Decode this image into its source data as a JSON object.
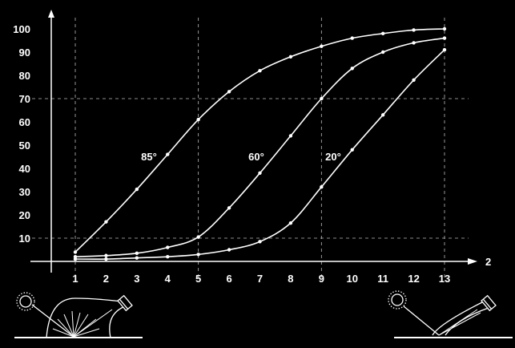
{
  "chart_data": {
    "type": "line",
    "title": "",
    "xlabel": "2",
    "ylabel": "",
    "x_ticks": [
      "1",
      "2",
      "3",
      "4",
      "5",
      "6",
      "7",
      "8",
      "9",
      "10",
      "11",
      "12",
      "13"
    ],
    "y_ticks": [
      "10",
      "20",
      "30",
      "40",
      "50",
      "60",
      "70",
      "80",
      "90",
      "100"
    ],
    "xlim": [
      1,
      13
    ],
    "ylim": [
      0,
      100
    ],
    "grid": "dashed reference lines at x = 1, 5, 9, 13 and y = 10, 70",
    "ref_x": [
      1,
      5,
      9,
      13
    ],
    "ref_y": [
      10,
      70
    ],
    "series": [
      {
        "name": "85°",
        "x": [
          1,
          2,
          3,
          4,
          5,
          6,
          7,
          8,
          9,
          10,
          11,
          12,
          13
        ],
        "y": [
          4,
          17,
          31,
          46,
          61,
          73,
          82,
          88,
          92.5,
          96,
          98,
          99.5,
          100
        ]
      },
      {
        "name": "60°",
        "x": [
          1,
          2,
          3,
          4,
          5,
          6,
          7,
          8,
          9,
          10,
          11,
          12,
          13
        ],
        "y": [
          2,
          2.5,
          3.5,
          6,
          10.5,
          23,
          38,
          54,
          70,
          83,
          90,
          94,
          96
        ]
      },
      {
        "name": "20°",
        "x": [
          1,
          2,
          3,
          4,
          5,
          6,
          7,
          8,
          9,
          10,
          11,
          12,
          13
        ],
        "y": [
          1,
          1,
          1.5,
          2,
          3,
          5,
          8.5,
          16.5,
          32,
          48,
          63,
          78,
          91
        ]
      }
    ],
    "colors": {
      "background": "#000000",
      "foreground": "#ffffff"
    }
  },
  "illustrations": {
    "left": "sun-icon, diffuse-reflection diagram with detector",
    "right": "sun-icon, specular-reflection diagram with detector"
  }
}
